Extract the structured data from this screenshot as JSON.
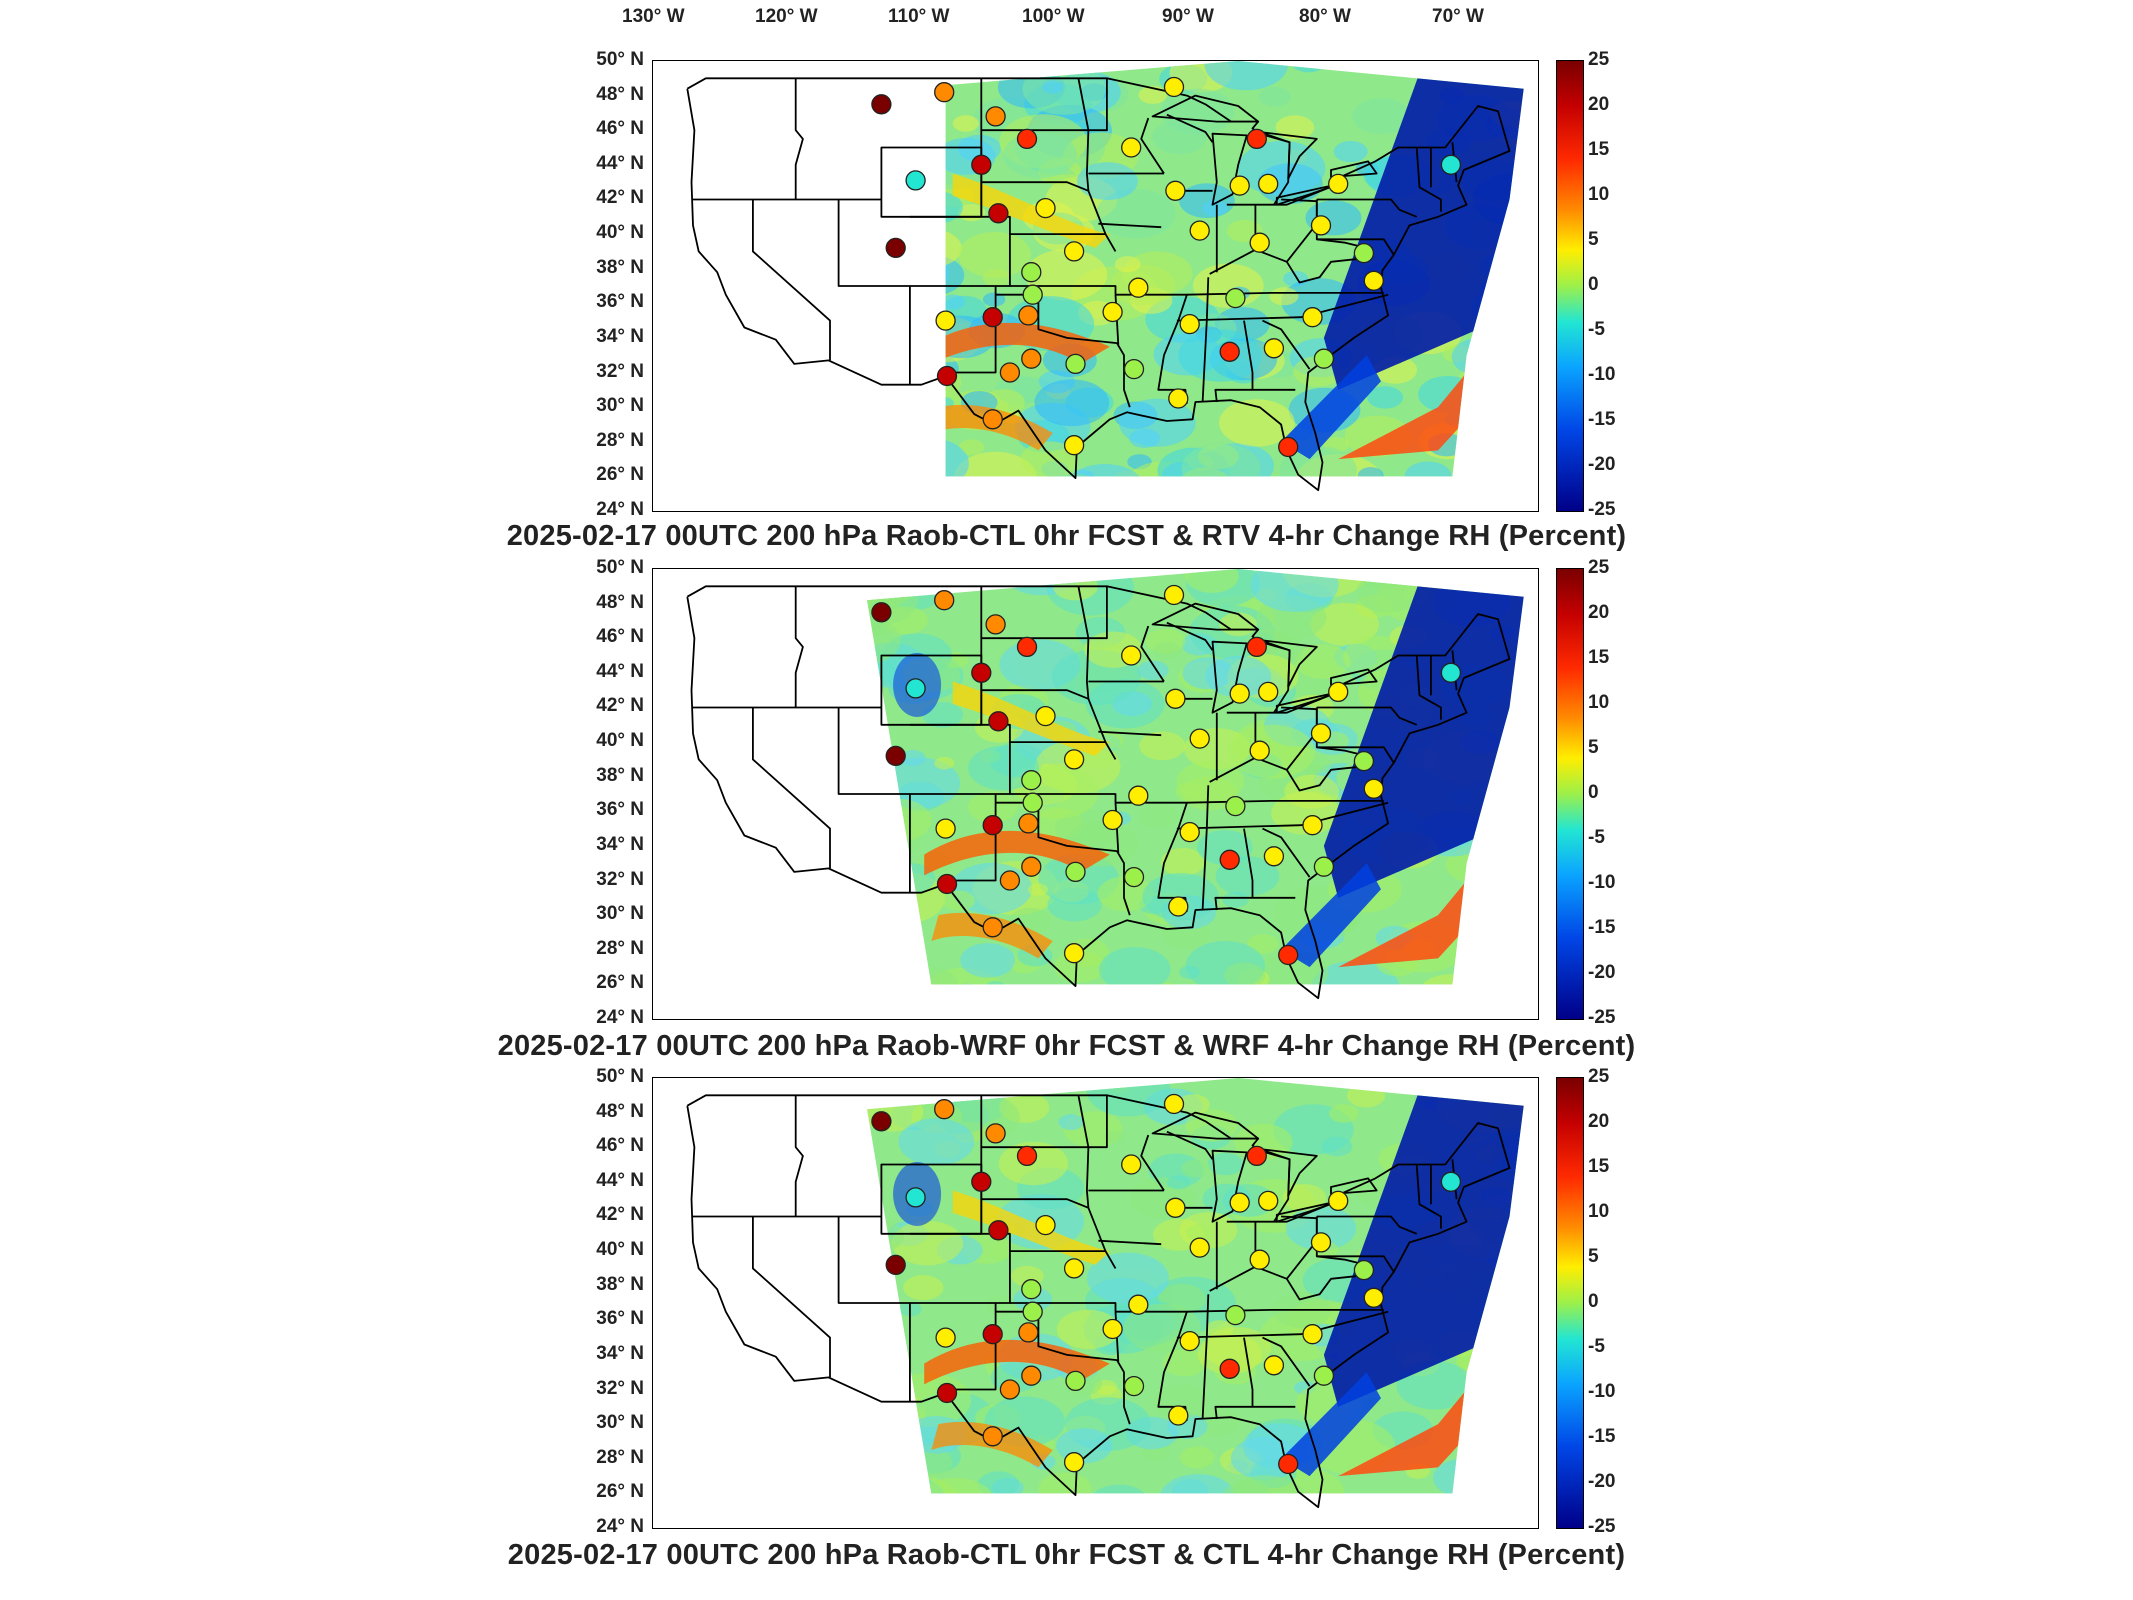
{
  "lon_labels": [
    "130° W",
    "120° W",
    "110° W",
    "100° W",
    "90° W",
    "80° W",
    "70° W"
  ],
  "lat_labels": [
    "50° N",
    "48° N",
    "46° N",
    "44° N",
    "42° N",
    "40° N",
    "38° N",
    "36° N",
    "34° N",
    "32° N",
    "30° N",
    "28° N",
    "26° N",
    "24° N"
  ],
  "colorbar": {
    "ticks": [
      "25",
      "20",
      "15",
      "10",
      "5",
      "0",
      "-5",
      "-10",
      "-15",
      "-20",
      "-25"
    ],
    "range": [
      -25,
      25
    ],
    "colormap": "jet",
    "colors": [
      "#7a0000",
      "#c40000",
      "#ff2a00",
      "#ff8a00",
      "#ffee00",
      "#9cf04a",
      "#22e6d2",
      "#0aa4ff",
      "#0046e6",
      "#000088"
    ]
  },
  "panels": [
    {
      "title": "2025-02-17 00UTC 200 hPa Raob-CTL 0hr FCST & RTV 4-hr Change RH (Percent)"
    },
    {
      "title": "2025-02-17 00UTC 200 hPa Raob-WRF 0hr FCST & WRF 4-hr Change RH (Percent)"
    },
    {
      "title": "2025-02-17 00UTC 200 hPa Raob-CTL 0hr FCST & CTL 4-hr Change RH (Percent)"
    }
  ],
  "stations": [
    {
      "lon": -111.0,
      "lat": 47.5,
      "value": 23
    },
    {
      "lon": -106.6,
      "lat": 48.2,
      "value": 6
    },
    {
      "lon": -103.0,
      "lat": 46.8,
      "value": 5
    },
    {
      "lon": -100.8,
      "lat": 45.5,
      "value": 13
    },
    {
      "lon": -104.0,
      "lat": 44.0,
      "value": 17
    },
    {
      "lon": -108.6,
      "lat": 43.1,
      "value": -8
    },
    {
      "lon": -102.8,
      "lat": 41.2,
      "value": 19
    },
    {
      "lon": -110.0,
      "lat": 39.2,
      "value": 20
    },
    {
      "lon": -99.5,
      "lat": 41.5,
      "value": 4
    },
    {
      "lon": -97.5,
      "lat": 39.0,
      "value": 3
    },
    {
      "lon": -100.5,
      "lat": 37.8,
      "value": -3
    },
    {
      "lon": -100.4,
      "lat": 36.5,
      "value": -3
    },
    {
      "lon": -106.5,
      "lat": 35.0,
      "value": 1
    },
    {
      "lon": -103.2,
      "lat": 35.2,
      "value": 19
    },
    {
      "lon": -100.7,
      "lat": 35.3,
      "value": 9
    },
    {
      "lon": -102.0,
      "lat": 32.0,
      "value": 6
    },
    {
      "lon": -100.5,
      "lat": 32.8,
      "value": 5
    },
    {
      "lon": -106.4,
      "lat": 31.8,
      "value": 15
    },
    {
      "lon": -103.2,
      "lat": 29.3,
      "value": 5
    },
    {
      "lon": -97.5,
      "lat": 27.8,
      "value": 2
    },
    {
      "lon": -94.8,
      "lat": 35.5,
      "value": 2
    },
    {
      "lon": -97.4,
      "lat": 32.5,
      "value": -2
    },
    {
      "lon": -93.3,
      "lat": 32.2,
      "value": -3
    },
    {
      "lon": -90.2,
      "lat": 30.5,
      "value": 2
    },
    {
      "lon": -89.4,
      "lat": 34.8,
      "value": 2
    },
    {
      "lon": -86.6,
      "lat": 33.2,
      "value": 11
    },
    {
      "lon": -86.2,
      "lat": 36.3,
      "value": -2
    },
    {
      "lon": -83.5,
      "lat": 33.4,
      "value": 1
    },
    {
      "lon": -80.0,
      "lat": 32.8,
      "value": -4
    },
    {
      "lon": -80.8,
      "lat": 35.2,
      "value": 2
    },
    {
      "lon": -82.5,
      "lat": 27.7,
      "value": 12
    },
    {
      "lon": -84.5,
      "lat": 39.5,
      "value": 2
    },
    {
      "lon": -80.2,
      "lat": 40.5,
      "value": 3
    },
    {
      "lon": -85.9,
      "lat": 42.8,
      "value": 1
    },
    {
      "lon": -84.7,
      "lat": 45.5,
      "value": 12
    },
    {
      "lon": -88.7,
      "lat": 40.2,
      "value": 1
    },
    {
      "lon": -90.4,
      "lat": 42.5,
      "value": 2
    },
    {
      "lon": -93.5,
      "lat": 45.0,
      "value": 3
    },
    {
      "lon": -90.5,
      "lat": 48.5,
      "value": 1
    },
    {
      "lon": -93.0,
      "lat": 36.9,
      "value": 3
    },
    {
      "lon": -83.9,
      "lat": 42.9,
      "value": 2
    },
    {
      "lon": -79.0,
      "lat": 42.9,
      "value": 1
    },
    {
      "lon": -77.2,
      "lat": 38.9,
      "value": -5
    },
    {
      "lon": -76.5,
      "lat": 37.3,
      "value": 2
    },
    {
      "lon": -71.1,
      "lat": 44.0,
      "value": -6
    }
  ]
}
